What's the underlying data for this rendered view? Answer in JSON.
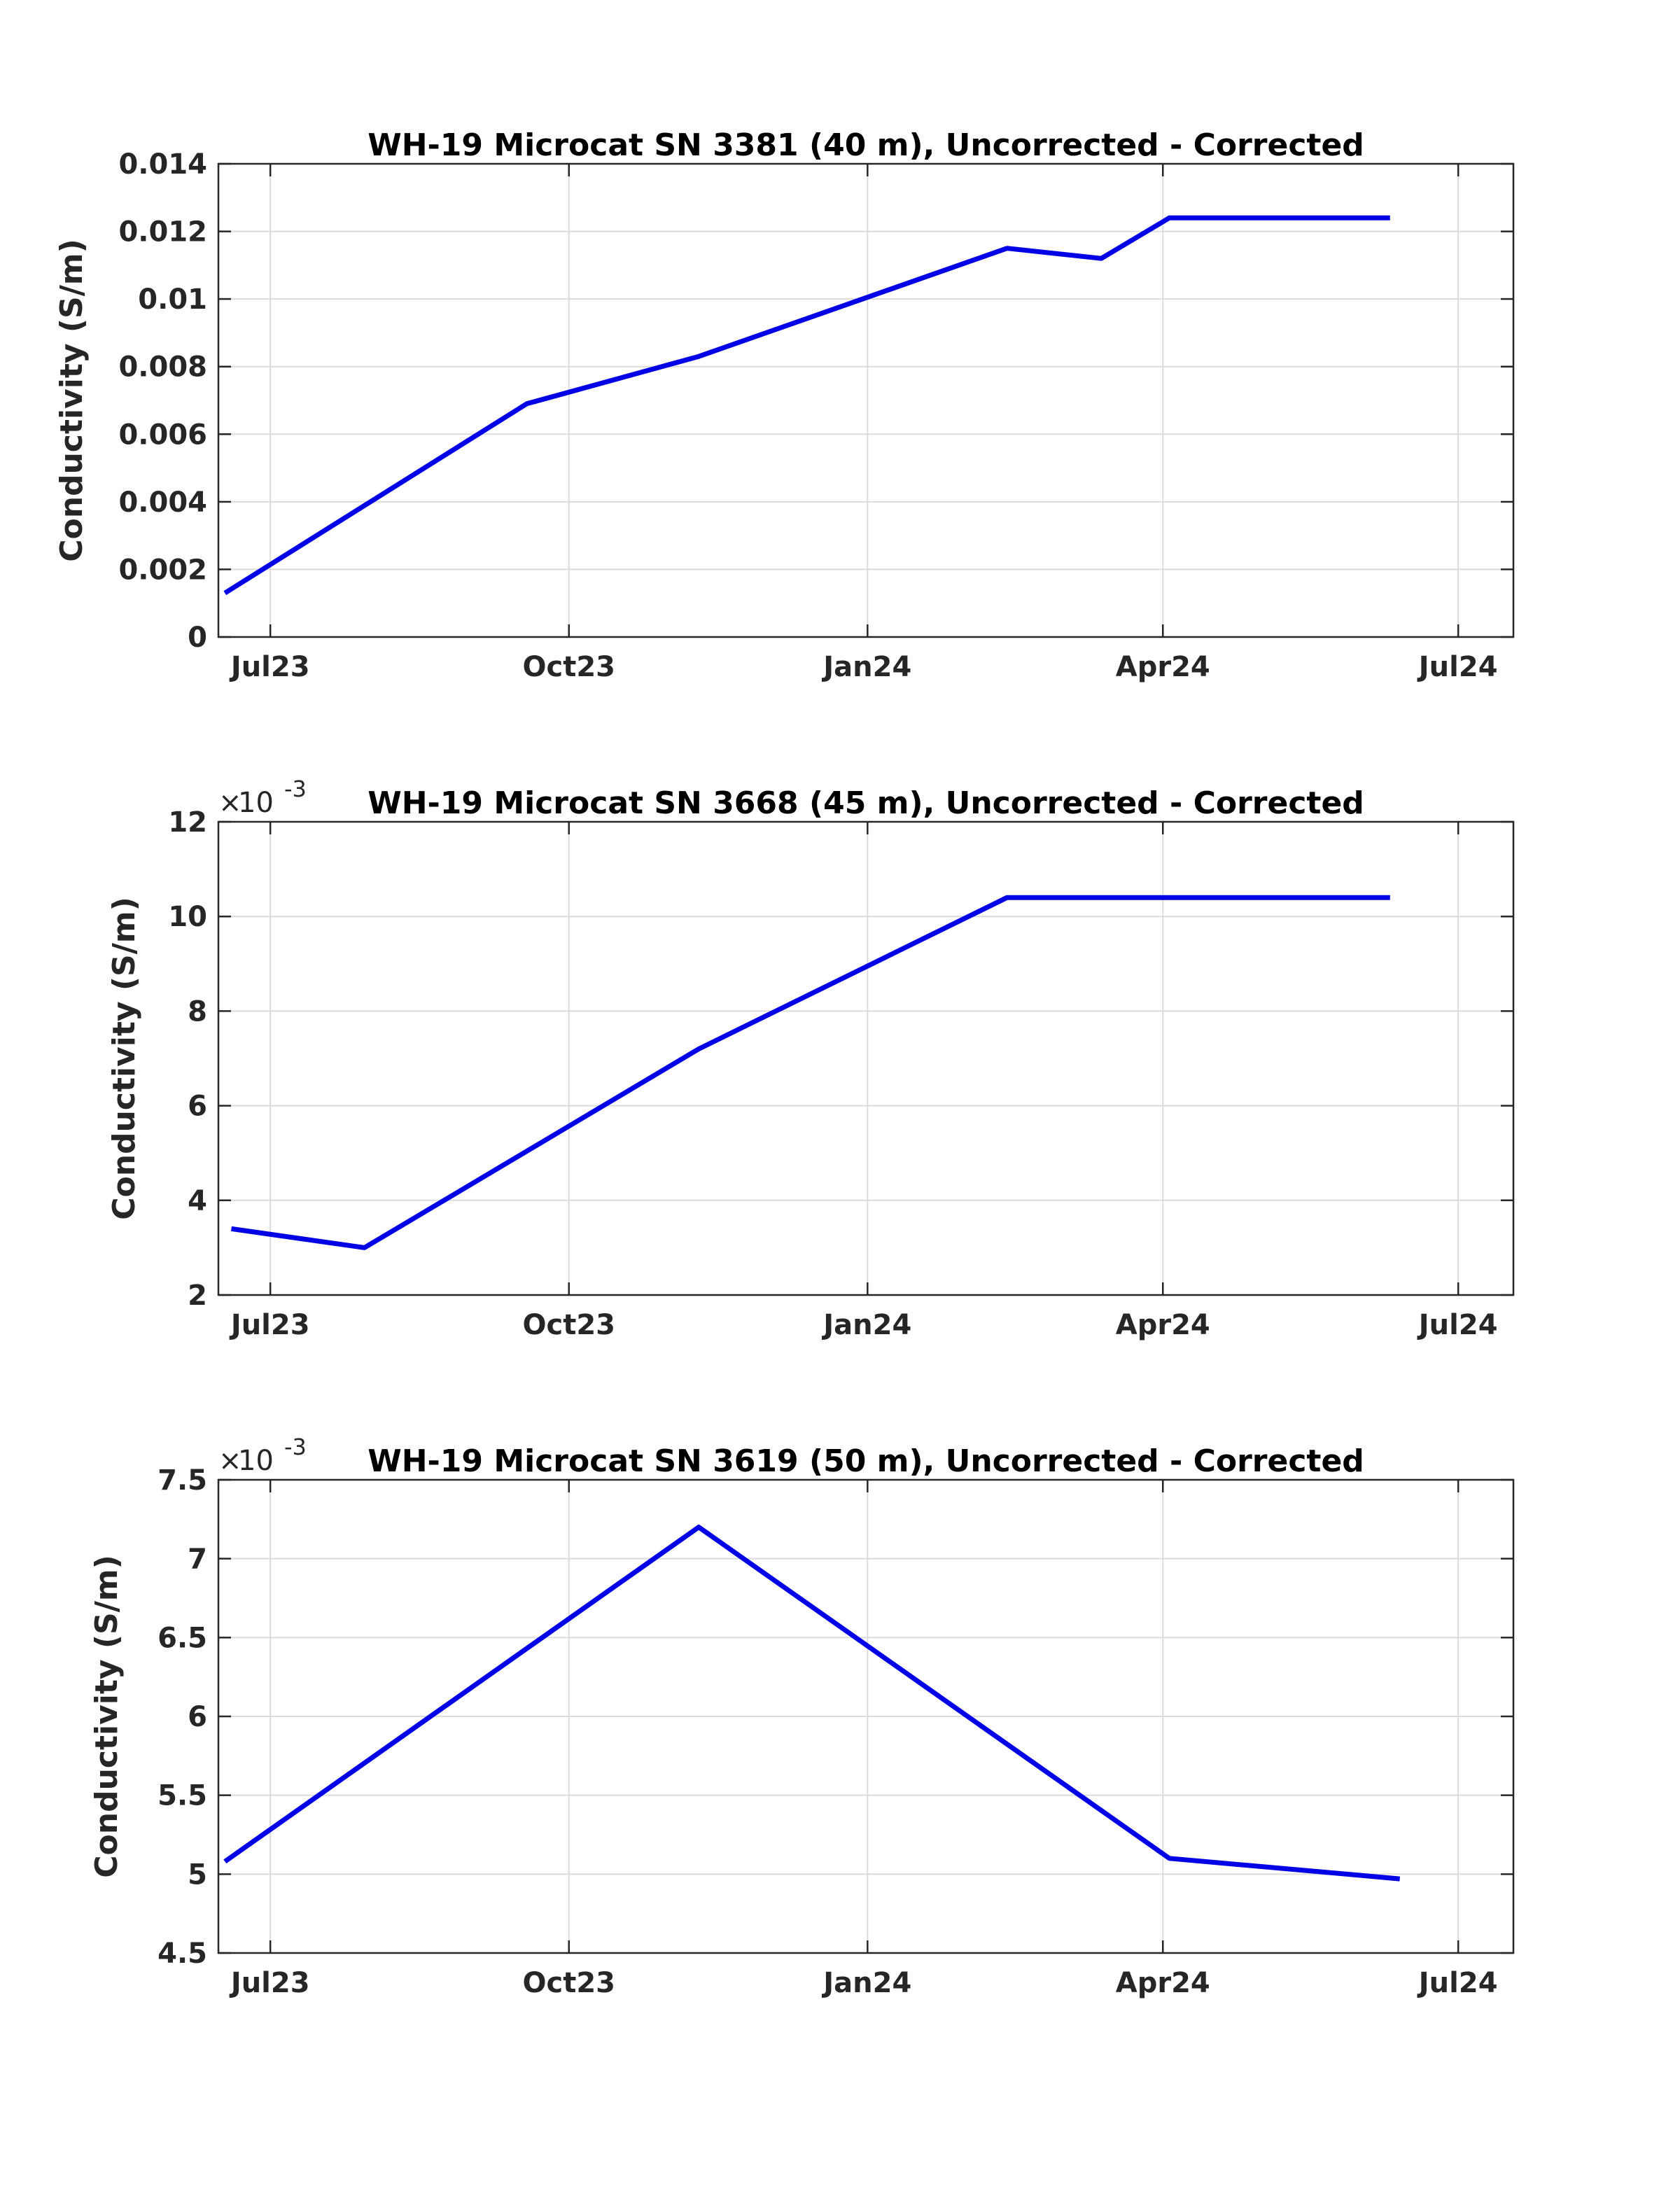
{
  "chart_data": [
    {
      "type": "line",
      "title": "WH-19 Microcat SN 3381 (40 m), Uncorrected - Corrected",
      "xlabel": "",
      "ylabel": "Conductivity (S/m)",
      "x_tick_labels": [
        "Jul23",
        "Oct23",
        "Jan24",
        "Apr24",
        "Jul24"
      ],
      "x_ticks": [
        "2023-07-01",
        "2023-10-01",
        "2024-01-01",
        "2024-04-01",
        "2024-07-01"
      ],
      "xlim": [
        "2023-06-15",
        "2024-07-18"
      ],
      "ylim": [
        0,
        0.014
      ],
      "y_ticks": [
        0,
        0.002,
        0.004,
        0.006,
        0.008,
        0.01,
        0.012,
        0.014
      ],
      "y_tick_labels": [
        "0",
        "0.002",
        "0.004",
        "0.006",
        "0.008",
        "0.01",
        "0.012",
        "0.014"
      ],
      "y_multiplier": "",
      "grid": true,
      "color": "#0000e6",
      "series": [
        {
          "x": [
            "2023-06-17",
            "2023-09-18",
            "2023-11-10",
            "2024-02-13",
            "2024-03-13",
            "2024-04-03",
            "2024-06-10"
          ],
          "y": [
            0.0013,
            0.0069,
            0.0083,
            0.0115,
            0.0112,
            0.0124,
            0.0124
          ]
        }
      ]
    },
    {
      "type": "line",
      "title": "WH-19 Microcat SN 3668 (45 m), Uncorrected - Corrected",
      "xlabel": "",
      "ylabel": "Conductivity (S/m)",
      "x_tick_labels": [
        "Jul23",
        "Oct23",
        "Jan24",
        "Apr24",
        "Jul24"
      ],
      "x_ticks": [
        "2023-07-01",
        "2023-10-01",
        "2024-01-01",
        "2024-04-01",
        "2024-07-01"
      ],
      "xlim": [
        "2023-06-15",
        "2024-07-18"
      ],
      "ylim": [
        0.002,
        0.012
      ],
      "y_ticks": [
        0.002,
        0.004,
        0.006,
        0.008,
        0.01,
        0.012
      ],
      "y_tick_labels": [
        "2",
        "4",
        "6",
        "8",
        "10",
        "12"
      ],
      "y_multiplier": "10",
      "y_multiplier_exp": "-3",
      "grid": true,
      "color": "#0000e6",
      "series": [
        {
          "x": [
            "2023-06-19",
            "2023-07-30",
            "2023-11-10",
            "2024-02-13",
            "2024-06-10"
          ],
          "y": [
            0.0034,
            0.003,
            0.0072,
            0.0104,
            0.0104
          ]
        }
      ]
    },
    {
      "type": "line",
      "title": "WH-19 Microcat SN 3619 (50 m), Uncorrected - Corrected",
      "xlabel": "",
      "ylabel": "Conductivity (S/m)",
      "x_tick_labels": [
        "Jul23",
        "Oct23",
        "Jan24",
        "Apr24",
        "Jul24"
      ],
      "x_ticks": [
        "2023-07-01",
        "2023-10-01",
        "2024-01-01",
        "2024-04-01",
        "2024-07-01"
      ],
      "xlim": [
        "2023-06-15",
        "2024-07-18"
      ],
      "ylim": [
        0.0045,
        0.0075
      ],
      "y_ticks": [
        0.0045,
        0.005,
        0.0055,
        0.006,
        0.0065,
        0.007,
        0.0075
      ],
      "y_tick_labels": [
        "4.5",
        "5",
        "5.5",
        "6",
        "6.5",
        "7",
        "7.5"
      ],
      "y_multiplier": "10",
      "y_multiplier_exp": "-3",
      "grid": true,
      "color": "#0000e6",
      "series": [
        {
          "x": [
            "2023-06-17",
            "2023-11-10",
            "2024-04-03",
            "2024-06-13"
          ],
          "y": [
            0.00508,
            0.0072,
            0.0051,
            0.00497
          ]
        }
      ]
    }
  ]
}
